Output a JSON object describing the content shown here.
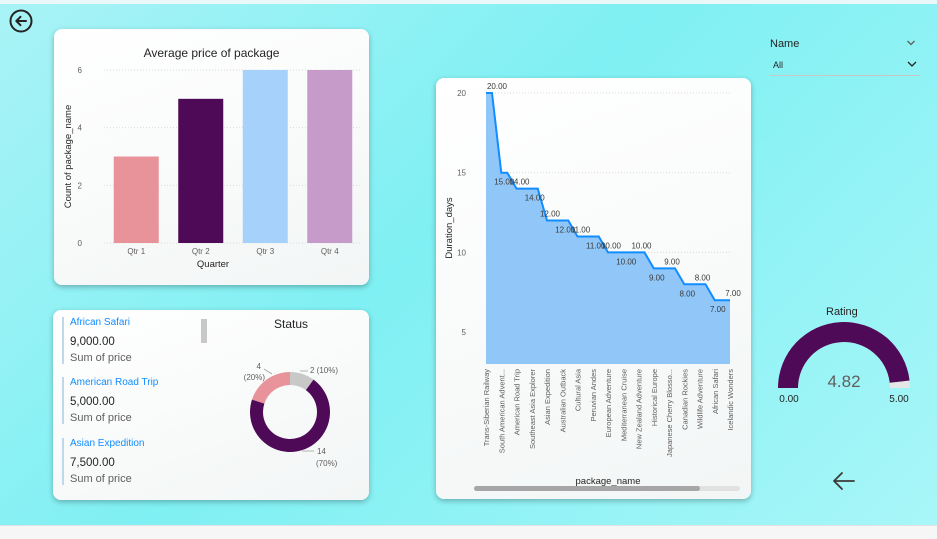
{
  "navigation": {
    "back_icon": "circle-arrow-left-icon",
    "next_icon": "arrow-left-icon"
  },
  "bar_chart": {
    "title": "Average price of package",
    "xlabel": "Quarter",
    "ylabel": "Count of package_name",
    "y_ticks": [
      "0",
      "2",
      "4",
      "6"
    ],
    "colors": [
      "#e8939a",
      "#4e0a57",
      "#a5d1fa",
      "#c69ac9"
    ]
  },
  "area_chart": {
    "xlabel": "package_name",
    "ylabel": "Duration_days",
    "y_ticks": [
      "5",
      "10",
      "15",
      "20"
    ],
    "fill_color": "#8ac4f8",
    "line_color": "#118dff"
  },
  "slicer": {
    "label": "Name",
    "value": "All"
  },
  "kpi_list": {
    "items": [
      {
        "name": "African Safari",
        "value": "9,000.00",
        "sub": "Sum of price"
      },
      {
        "name": "American Road Trip",
        "value": "5,000.00",
        "sub": "Sum of price"
      },
      {
        "name": "Asian Expedition",
        "value": "7,500.00",
        "sub": "Sum of price"
      }
    ]
  },
  "donut": {
    "title": "Status",
    "labels": [
      "4",
      "(20%)",
      "2 (10%)",
      "14",
      "(70%)"
    ],
    "colors": [
      "#e8939a",
      "#c8c8c8",
      "#4e0a57"
    ]
  },
  "gauge": {
    "title": "Rating",
    "value": "4.82",
    "min": "0.00",
    "max": "5.00",
    "fill_color": "#4e0a57"
  },
  "chart_data": [
    {
      "type": "bar",
      "title": "Average price of package",
      "xlabel": "Quarter",
      "ylabel": "Count of package_name",
      "categories": [
        "Qtr 1",
        "Qtr 2",
        "Qtr 3",
        "Qtr 4"
      ],
      "values": [
        3,
        5,
        6,
        6
      ],
      "ylim": [
        0,
        6
      ],
      "grid": true
    },
    {
      "type": "area",
      "xlabel": "package_name",
      "ylabel": "Duration_days",
      "categories": [
        "Trans-Siberian Railway",
        "South American Advent...",
        "American Road Trip",
        "Southeast Asia Explorer",
        "Asian Expedition",
        "Australian Outback",
        "Cultural Asia",
        "Peruvian Andes",
        "European Adventure",
        "Mediterranean Cruise",
        "New Zealand Adventure",
        "Historical Europe",
        "Japanese Cherry Blosso...",
        "Canadian Rockies",
        "Wildlife Adventure",
        "African Safari",
        "Icelandic Wonders"
      ],
      "values": [
        20,
        15,
        14,
        14,
        12,
        12,
        11,
        11,
        10,
        10,
        10,
        9,
        9,
        8,
        8,
        7,
        7
      ],
      "data_labels": [
        "20.00",
        "15.00",
        "14.00",
        "14.00",
        "12.00",
        "12.00",
        "11.00",
        "11.00",
        "10.00",
        "10.00",
        "10.00",
        "9.00",
        "9.00",
        "8.00",
        "8.00",
        "7.00",
        "7.00"
      ],
      "ylim": [
        3,
        20
      ],
      "grid": true
    },
    {
      "type": "pie",
      "title": "Status",
      "values": [
        4,
        2,
        14
      ],
      "percentages": [
        20,
        10,
        70
      ]
    }
  ]
}
